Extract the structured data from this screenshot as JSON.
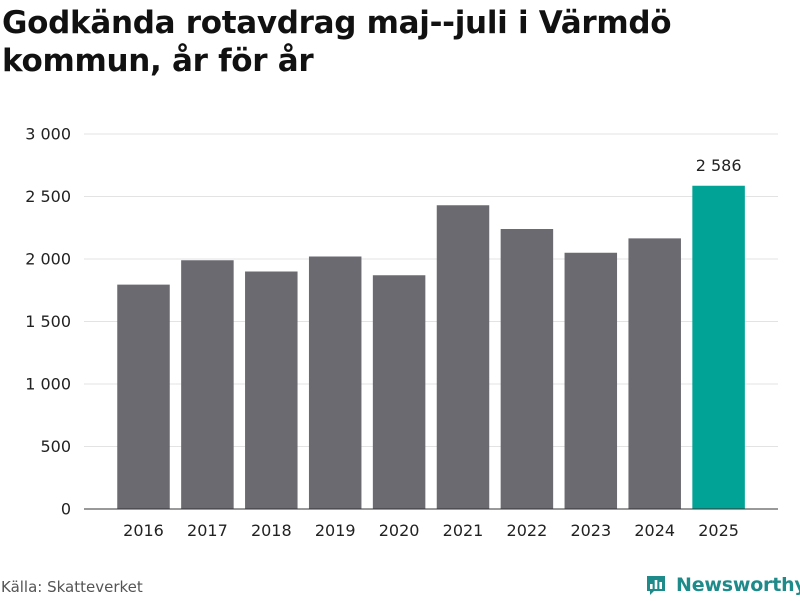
{
  "chart_data": {
    "type": "bar",
    "title": "Godkända rotavdrag maj--juli i Värmdö kommun, år för år",
    "categories": [
      "2016",
      "2017",
      "2018",
      "2019",
      "2020",
      "2021",
      "2022",
      "2023",
      "2024",
      "2025"
    ],
    "values": [
      1795,
      1990,
      1900,
      2020,
      1870,
      2430,
      2240,
      2050,
      2165,
      2586
    ],
    "highlight_index": 9,
    "highlight_label": "2 586",
    "yticks": [
      "0",
      "500",
      "1 000",
      "1 500",
      "2 000",
      "2 500",
      "3 000"
    ],
    "ylim": [
      0,
      3000
    ],
    "xlabel": "",
    "ylabel": "",
    "grid": true,
    "colors": {
      "bar": "#6b6a70",
      "highlight": "#00a396",
      "grid": "#e3e3e3"
    }
  },
  "footer": {
    "source": "Källa: Skatteverket",
    "brand": "Newsworthy",
    "brand_icon": "bar-chart-logo-icon"
  }
}
